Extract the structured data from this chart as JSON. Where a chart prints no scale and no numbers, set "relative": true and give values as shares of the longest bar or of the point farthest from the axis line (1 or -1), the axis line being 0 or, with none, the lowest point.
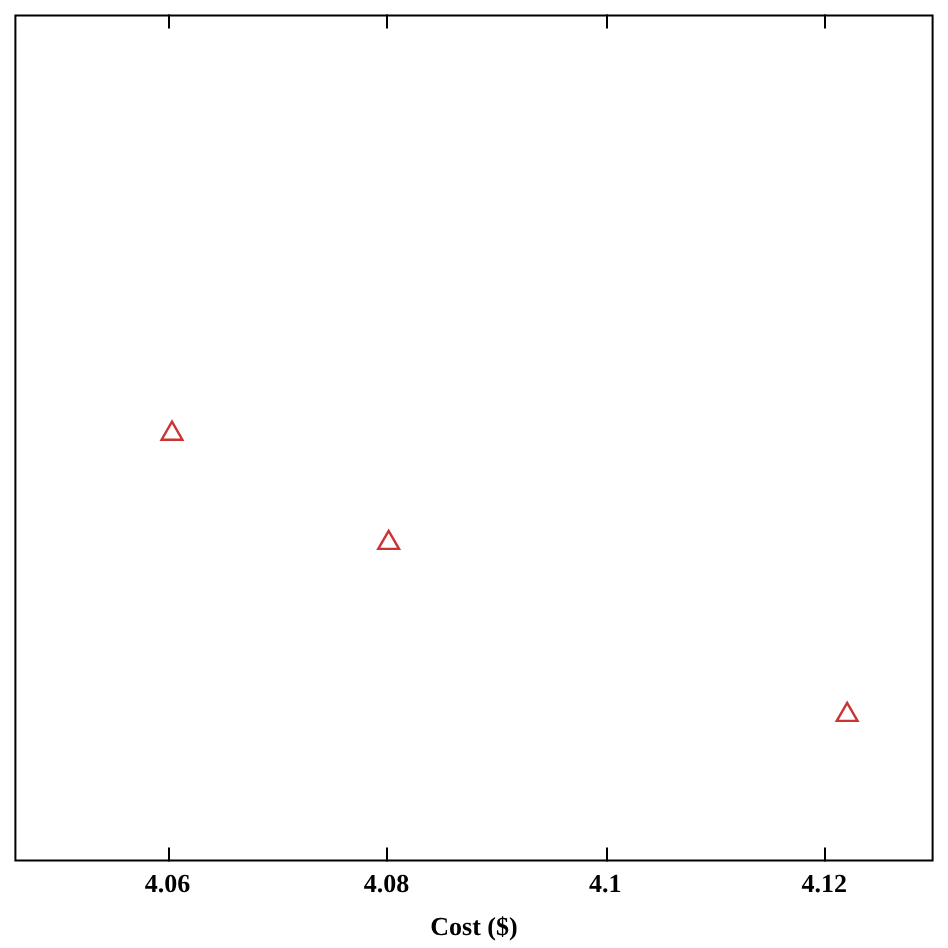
{
  "chart_data": {
    "type": "scatter",
    "xlabel": "Cost ($)",
    "relative": true,
    "x": [
      4.0604,
      4.0802,
      4.1221
    ],
    "series": [
      {
        "color": "#cc3333",
        "values": [
          1,
          0.745,
          0.343
        ]
      }
    ],
    "xlim": [
      4.046,
      4.13
    ],
    "xticks": [
      4.06,
      4.08,
      4.1,
      4.12
    ],
    "marker": "triangle",
    "grid": false,
    "legend": false
  }
}
